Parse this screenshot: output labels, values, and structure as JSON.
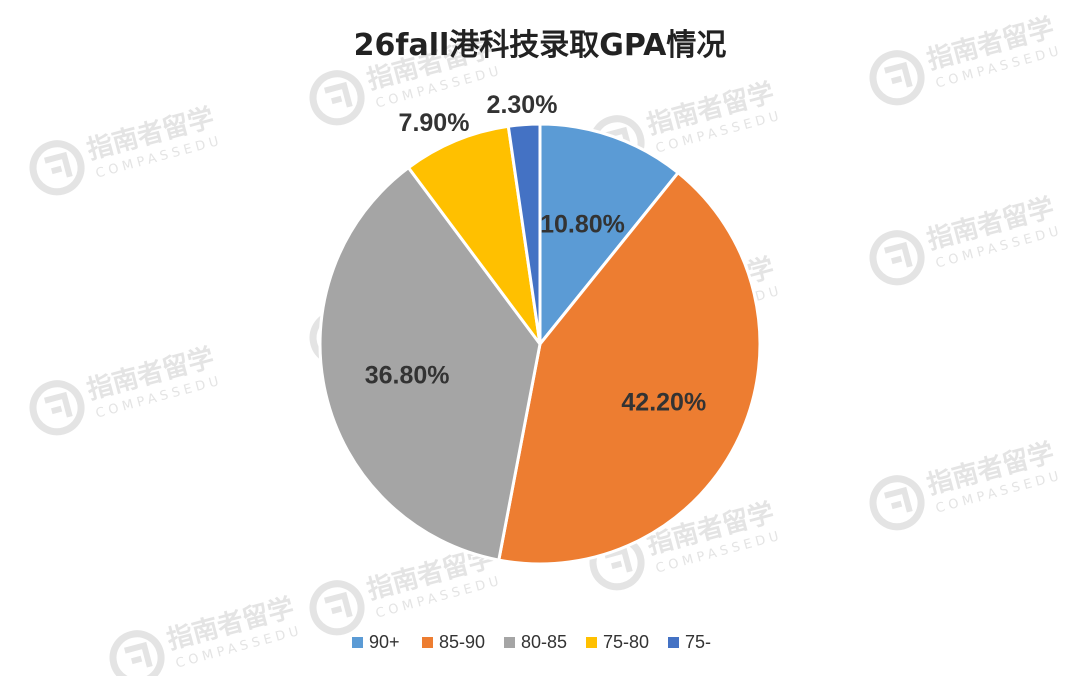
{
  "chart_data": {
    "type": "pie",
    "title": "26fall港科技录取GPA情况",
    "legend_position": "bottom",
    "series": [
      {
        "categories": [
          "90+",
          "85-90",
          "80-85",
          "75-80",
          "75-"
        ],
        "values": [
          10.8,
          42.2,
          36.8,
          7.9,
          2.3
        ],
        "labels": [
          "10.80%",
          "42.20%",
          "36.80%",
          "7.90%",
          "2.30%"
        ],
        "colors": [
          "#5b9bd5",
          "#ed7d31",
          "#a5a5a5",
          "#ffc000",
          "#4472c4"
        ]
      }
    ]
  },
  "watermark": {
    "text_cn": "指南者留学",
    "text_en": "COMPASSEDU",
    "color": "#e4e4e4"
  }
}
